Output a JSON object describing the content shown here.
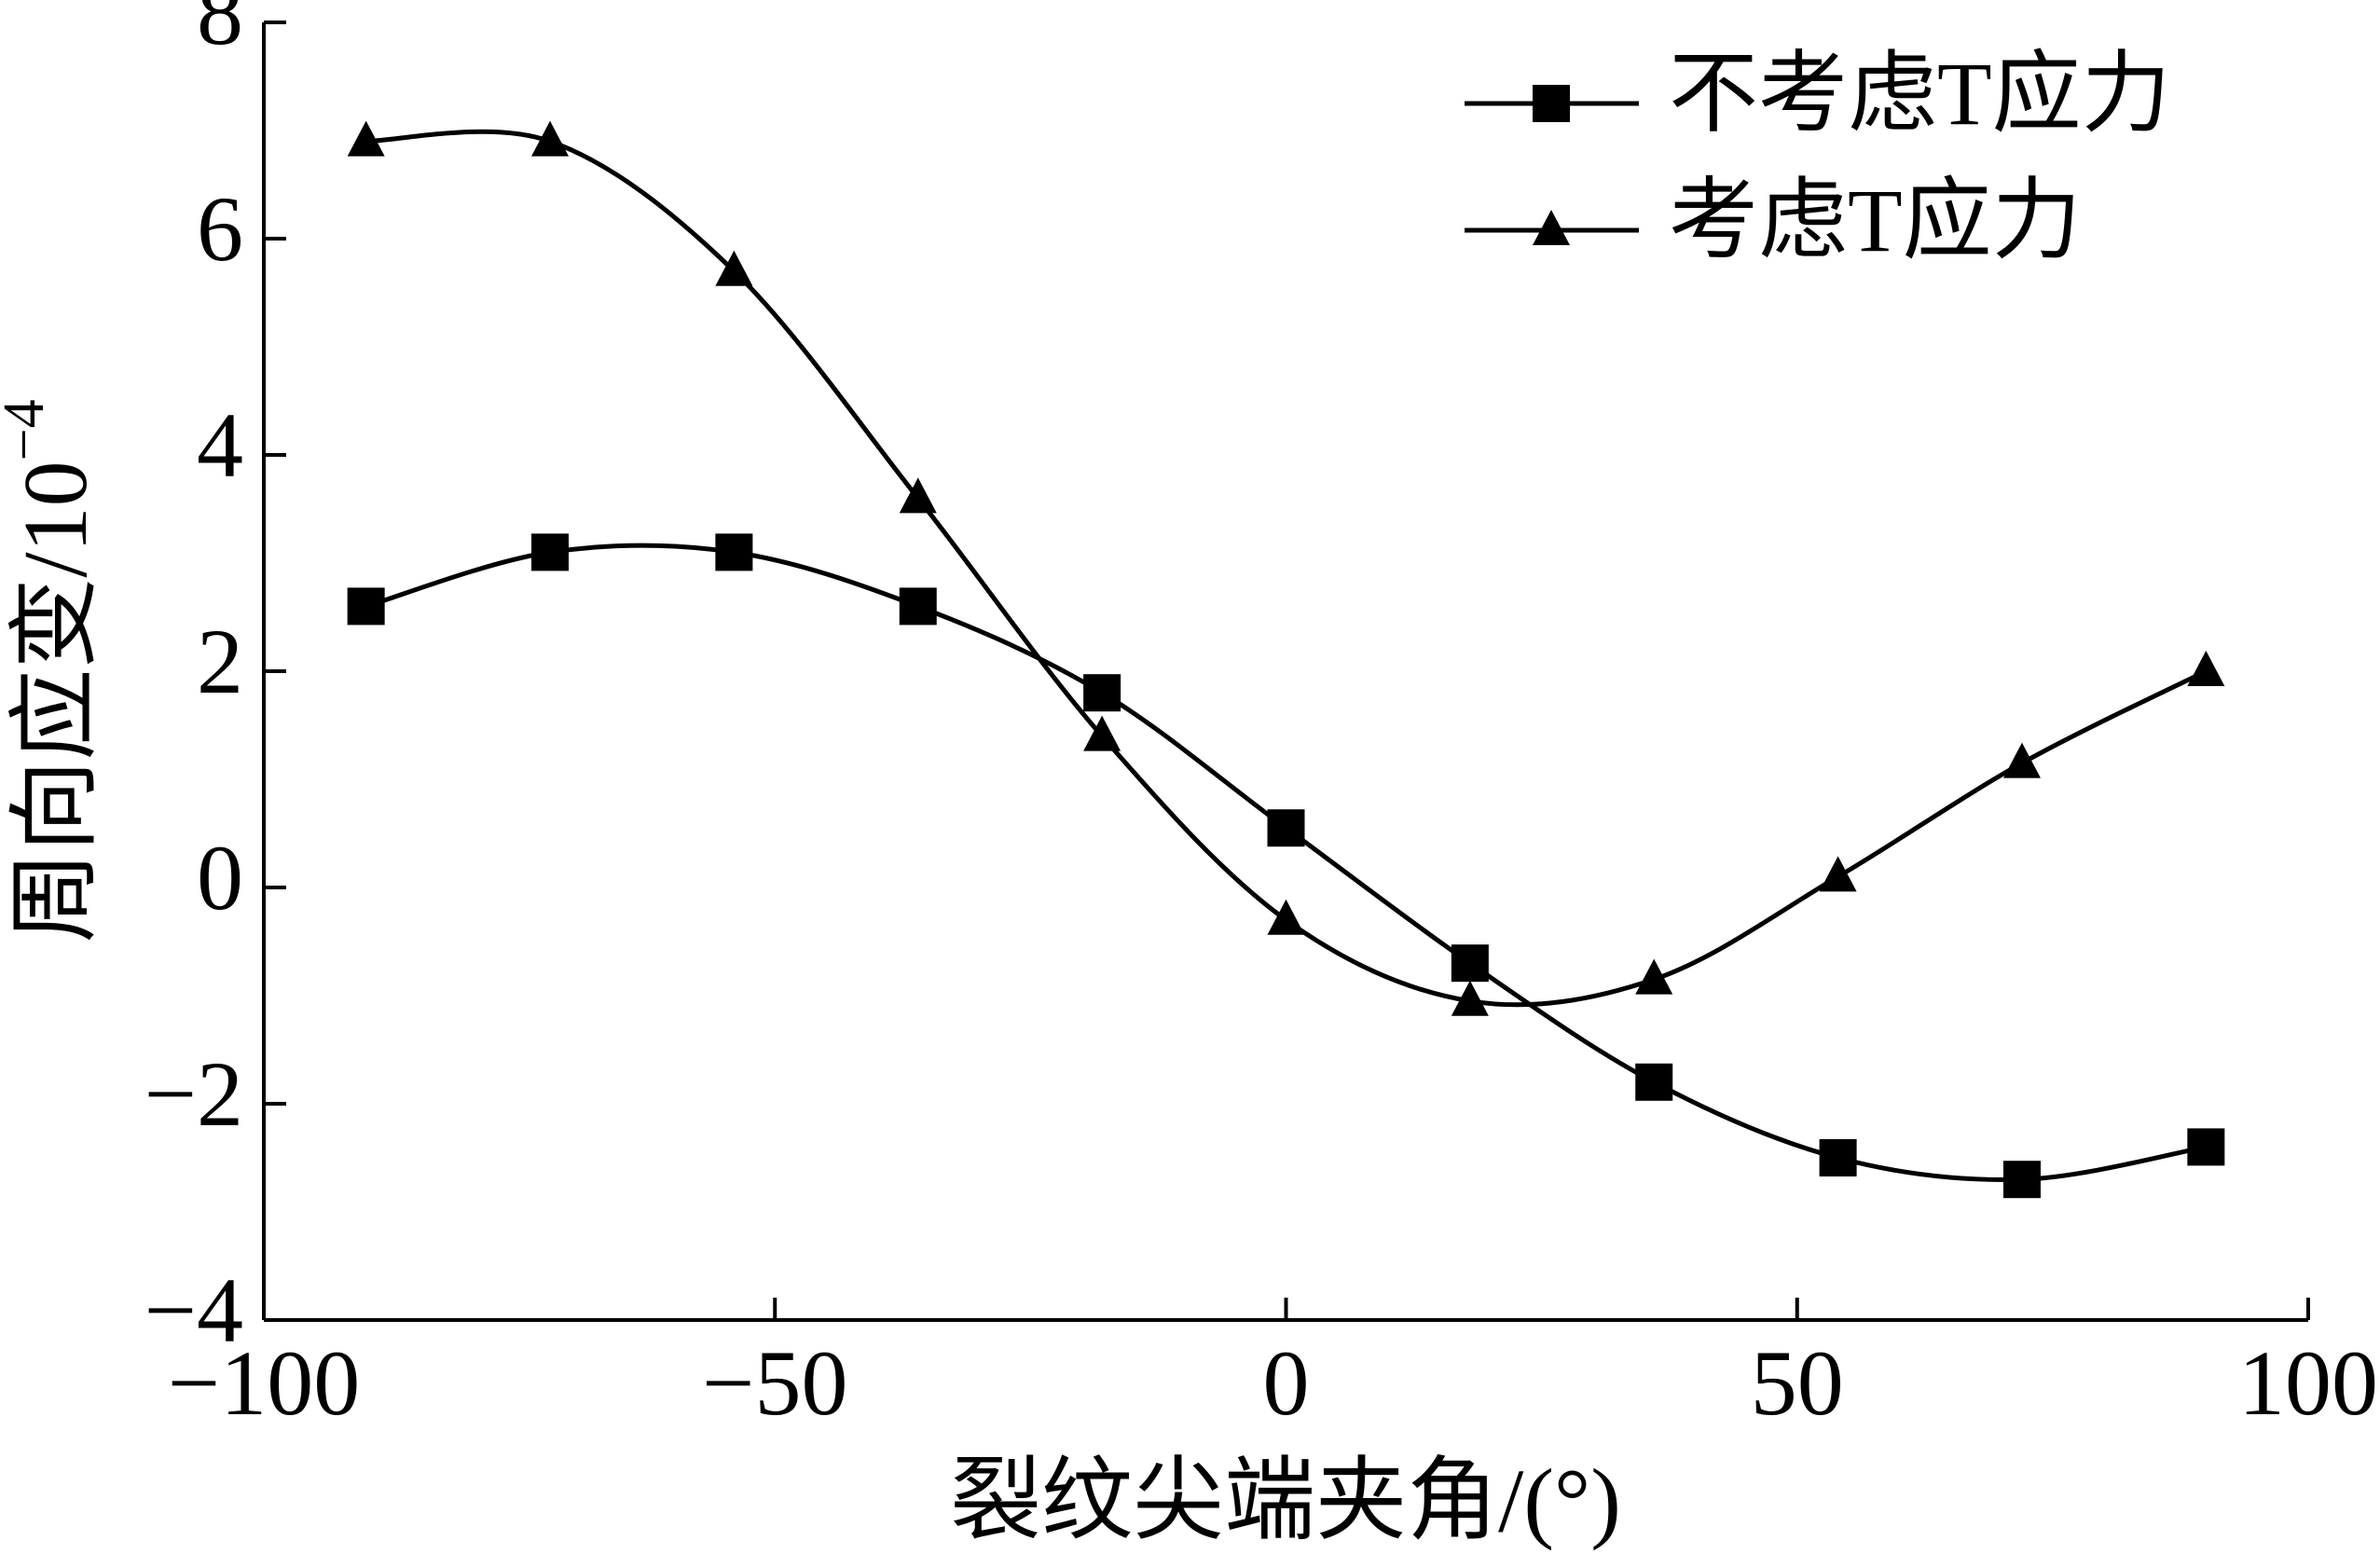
{
  "chart_data": {
    "type": "line",
    "x_label": "裂纹尖端夹角/(°)",
    "y_label": "周向应变/10",
    "y_label_superscript": "−4",
    "x": [
      -90,
      -72,
      -54,
      -36,
      -18,
      0,
      18,
      36,
      54,
      72,
      90
    ],
    "series": [
      {
        "name": "不考虑T应力",
        "color": "#000000",
        "marker": "square",
        "values": [
          2.6,
          3.1,
          3.1,
          2.6,
          1.8,
          0.55,
          -0.7,
          -1.8,
          -2.5,
          -2.7,
          -2.4
        ]
      },
      {
        "name": "考虑T应力",
        "color": "#000000",
        "marker": "triangle",
        "values": [
          6.9,
          6.9,
          5.7,
          3.6,
          1.4,
          -0.3,
          -1.05,
          -0.85,
          0.1,
          1.15,
          2.0
        ]
      }
    ],
    "xlim": [
      -100,
      100
    ],
    "xticks": [
      {
        "value": -100,
        "label": "−100"
      },
      {
        "value": -50,
        "label": "−50"
      },
      0,
      50,
      100
    ],
    "ylim": [
      -4,
      8
    ],
    "yticks": [
      {
        "value": -4,
        "label": "−4"
      },
      {
        "value": -2,
        "label": "−2"
      },
      0,
      2,
      4,
      6,
      8
    ],
    "legend": "upper right",
    "grid": false
  }
}
